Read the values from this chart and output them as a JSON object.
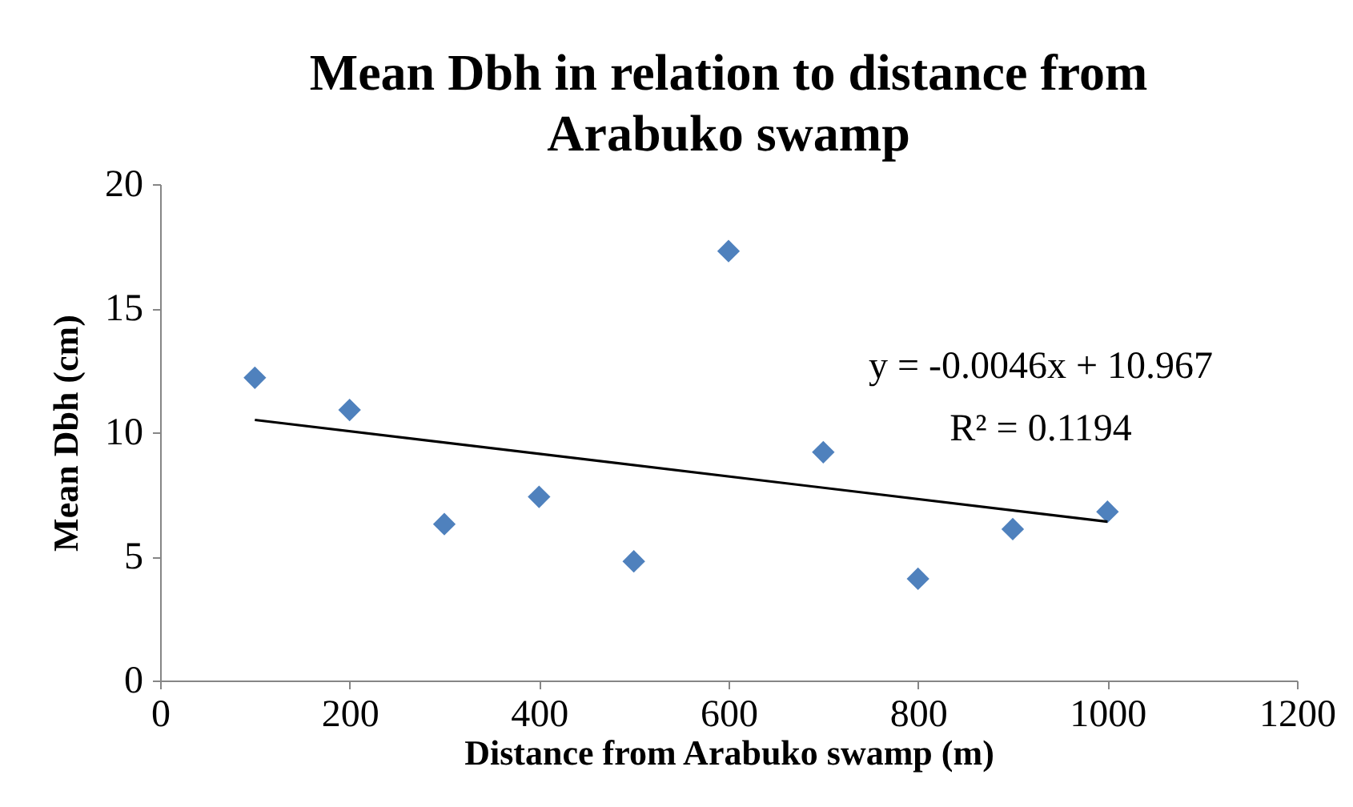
{
  "chart_data": {
    "type": "scatter",
    "title": "Mean Dbh in relation to distance from Arabuko swamp",
    "xlabel": "Distance from Arabuko swamp (m)",
    "ylabel": "Mean Dbh (cm)",
    "x": [
      100,
      200,
      300,
      400,
      500,
      600,
      700,
      800,
      900,
      1000
    ],
    "series": [
      {
        "color": "#4f81bd",
        "values": [
          12.2,
          10.9,
          6.3,
          7.4,
          4.8,
          17.3,
          9.2,
          4.1,
          6.1,
          6.8
        ]
      },
      {
        "type": "line",
        "color": "#000000",
        "x": [
          100,
          1000
        ],
        "values": [
          10.5,
          6.4
        ],
        "marker": "none"
      }
    ],
    "xlim": [
      0,
      1200
    ],
    "xticks": [
      0,
      200,
      400,
      600,
      800,
      1000,
      1200
    ],
    "ylim": [
      0,
      20
    ],
    "yticks": [
      0,
      5,
      10,
      15,
      20
    ],
    "grid": false,
    "marker": "diamond",
    "annotations": [
      "y = -0.0046x + 10.967",
      "R² = 0.1194"
    ]
  }
}
